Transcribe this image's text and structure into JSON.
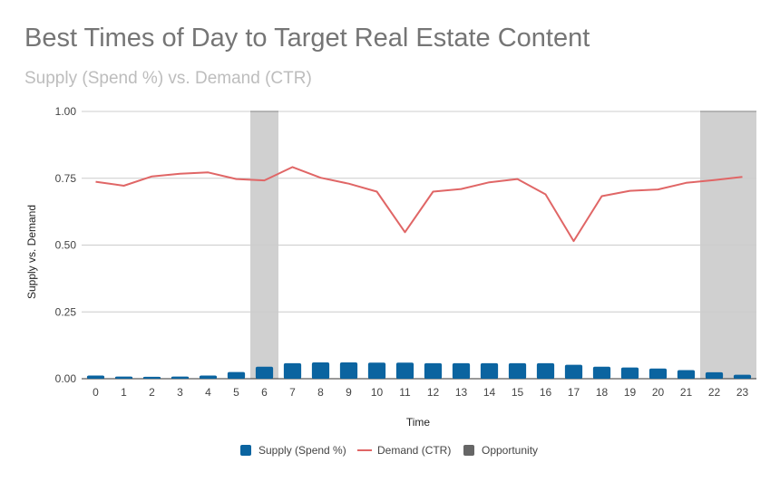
{
  "chart_data": {
    "type": "bar",
    "title": "Best Times of Day to Target Real Estate Content",
    "subtitle": "Supply (Spend %) vs. Demand (CTR)",
    "xlabel": "Time",
    "ylabel": "Supply vs. Demand",
    "ylim": [
      0,
      1
    ],
    "yticks": [
      "0.00",
      "0.25",
      "0.50",
      "0.75",
      "1.00"
    ],
    "ytick_values": [
      0,
      0.25,
      0.5,
      0.75,
      1.0
    ],
    "categories": [
      "0",
      "1",
      "2",
      "3",
      "4",
      "5",
      "6",
      "7",
      "8",
      "9",
      "10",
      "11",
      "12",
      "13",
      "14",
      "15",
      "16",
      "17",
      "18",
      "19",
      "20",
      "21",
      "22",
      "23"
    ],
    "series": [
      {
        "name": "Supply (Spend %)",
        "type": "bar",
        "color": "#0b64a0",
        "values": [
          0.012,
          0.008,
          0.007,
          0.008,
          0.012,
          0.025,
          0.045,
          0.058,
          0.061,
          0.061,
          0.06,
          0.06,
          0.058,
          0.058,
          0.058,
          0.058,
          0.058,
          0.052,
          0.045,
          0.042,
          0.038,
          0.032,
          0.024,
          0.015
        ]
      },
      {
        "name": "Demand (CTR)",
        "type": "line",
        "color": "#e06666",
        "values": [
          0.737,
          0.722,
          0.757,
          0.767,
          0.772,
          0.747,
          0.742,
          0.792,
          0.752,
          0.73,
          0.7,
          0.548,
          0.7,
          0.71,
          0.735,
          0.747,
          0.69,
          0.515,
          0.683,
          0.703,
          0.708,
          0.733,
          0.743,
          0.755
        ]
      },
      {
        "name": "Opportunity",
        "type": "band",
        "color": "#d0d0d0",
        "legend_color": "#666666",
        "values": [
          0,
          0,
          0,
          0,
          0,
          0,
          1,
          0,
          0,
          0,
          0,
          0,
          0,
          0,
          0,
          0,
          0,
          0,
          0,
          0,
          0,
          0,
          1,
          1
        ]
      }
    ],
    "legend_position": "bottom"
  }
}
